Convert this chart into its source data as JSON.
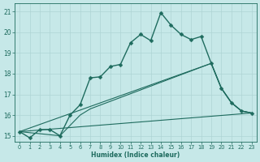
{
  "xlabel": "Humidex (Indice chaleur)",
  "background_color": "#c6e8e8",
  "grid_color": "#aed4d4",
  "line_color": "#1e6b5e",
  "xlim": [
    -0.5,
    23.5
  ],
  "ylim": [
    14.7,
    21.4
  ],
  "yticks": [
    15,
    16,
    17,
    18,
    19,
    20,
    21
  ],
  "xticks": [
    0,
    1,
    2,
    3,
    4,
    5,
    6,
    7,
    8,
    9,
    10,
    11,
    12,
    13,
    14,
    15,
    16,
    17,
    18,
    19,
    20,
    21,
    22,
    23
  ],
  "main_line": {
    "x": [
      0,
      1,
      2,
      3,
      4,
      5,
      6,
      7,
      8,
      9,
      10,
      11,
      12,
      13,
      14,
      15,
      16,
      17,
      18,
      19,
      20,
      21,
      22,
      23
    ],
    "y": [
      15.2,
      14.9,
      15.3,
      15.3,
      15.0,
      16.0,
      16.5,
      17.8,
      17.85,
      18.35,
      18.45,
      19.5,
      19.9,
      19.6,
      20.95,
      20.35,
      19.9,
      19.65,
      19.8,
      18.5,
      17.3,
      16.6,
      16.2,
      16.1
    ]
  },
  "extra_lines": [
    {
      "x": [
        0,
        23
      ],
      "y": [
        15.2,
        16.1
      ]
    },
    {
      "x": [
        0,
        19,
        20,
        21,
        22,
        23
      ],
      "y": [
        15.2,
        18.5,
        17.3,
        16.6,
        16.2,
        16.1
      ]
    },
    {
      "x": [
        0,
        4,
        5,
        6,
        7,
        19,
        20,
        21,
        22,
        23
      ],
      "y": [
        15.2,
        15.0,
        15.5,
        16.0,
        16.3,
        18.5,
        17.3,
        16.6,
        16.2,
        16.1
      ]
    }
  ]
}
